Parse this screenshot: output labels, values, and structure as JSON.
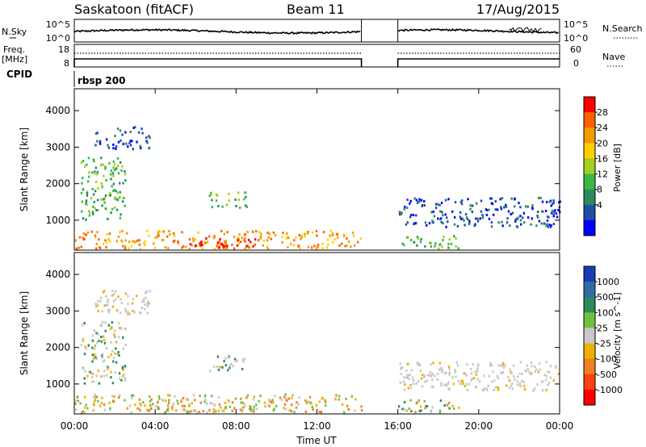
{
  "header": {
    "title": "Saskatoon (fitACF)",
    "beam": "Beam 11",
    "date": "17/Aug/2015"
  },
  "noise_panel": {
    "left_label": "N.Sky",
    "right_label": "N.Search",
    "left_ticks": [
      "10^5",
      "10^0"
    ],
    "right_ticks": [
      "10^5",
      "10^0"
    ]
  },
  "freq_panel": {
    "left_label_1": "Freq.",
    "left_label_2": "[MHz]",
    "right_label": "Nave",
    "left_ticks": [
      "18",
      "8"
    ],
    "right_ticks": [
      "60",
      "0"
    ]
  },
  "cpid": {
    "label": "CPID",
    "value": "rbsp 200"
  },
  "colorbars": {
    "power": {
      "label": "Power [dB]",
      "ticks": [
        "28",
        "24",
        "20",
        "16",
        "12",
        "8",
        "4"
      ],
      "colors": [
        "#ff0000",
        "#ff6000",
        "#f49a00",
        "#ffd000",
        "#a0d020",
        "#3ab844",
        "#2e8a5e",
        "#1e4ea8",
        "#0000ff"
      ]
    },
    "velocity": {
      "label": "Velocity [m s^-1]",
      "ticks": [
        "1000",
        "500",
        "100",
        "25",
        "-25",
        "-100",
        "-500",
        "-1000"
      ],
      "colors": [
        "#1b3ab8",
        "#2f6aa8",
        "#2a8a5a",
        "#70c040",
        "#c8c8c8",
        "#f0b000",
        "#f08020",
        "#ff4010",
        "#ff0000"
      ]
    }
  },
  "chart_data": [
    {
      "type": "heatmap",
      "panel": "power",
      "ylabel": "Slant Range [km]",
      "ylim": [
        180,
        4600
      ],
      "xlim_hours": [
        0,
        24
      ],
      "yticks": [
        "1000",
        "2000",
        "3000",
        "4000"
      ],
      "data_gap_hours": [
        14.2,
        16.0
      ],
      "echo_regions": [
        {
          "t0": 0.0,
          "t1": 14.2,
          "r0": 200,
          "r1": 700,
          "level": "mixed-strong"
        },
        {
          "t0": 0.3,
          "t1": 2.5,
          "r0": 1000,
          "r1": 2700,
          "level": "moderate"
        },
        {
          "t0": 1.0,
          "t1": 3.7,
          "r0": 2900,
          "r1": 3550,
          "level": "weak"
        },
        {
          "t0": 6.5,
          "t1": 8.5,
          "r0": 1300,
          "r1": 1750,
          "level": "moderate"
        },
        {
          "t0": 4.5,
          "t1": 9.0,
          "r0": 200,
          "r1": 500,
          "level": "strong"
        },
        {
          "t0": 16.0,
          "t1": 24.0,
          "r0": 800,
          "r1": 1600,
          "level": "weak"
        },
        {
          "t0": 16.0,
          "t1": 19.0,
          "r0": 200,
          "r1": 550,
          "level": "moderate"
        }
      ]
    },
    {
      "type": "heatmap",
      "panel": "velocity",
      "xlabel": "Time UT",
      "ylabel": "Slant Range [km]",
      "ylim": [
        180,
        4600
      ],
      "xlim_hours": [
        0,
        24
      ],
      "xticks": [
        "00:00",
        "04:00",
        "08:00",
        "12:00",
        "16:00",
        "20:00",
        "00:00"
      ],
      "yticks": [
        "1000",
        "2000",
        "3000",
        "4000"
      ],
      "data_gap_hours": [
        14.2,
        16.0
      ]
    }
  ]
}
